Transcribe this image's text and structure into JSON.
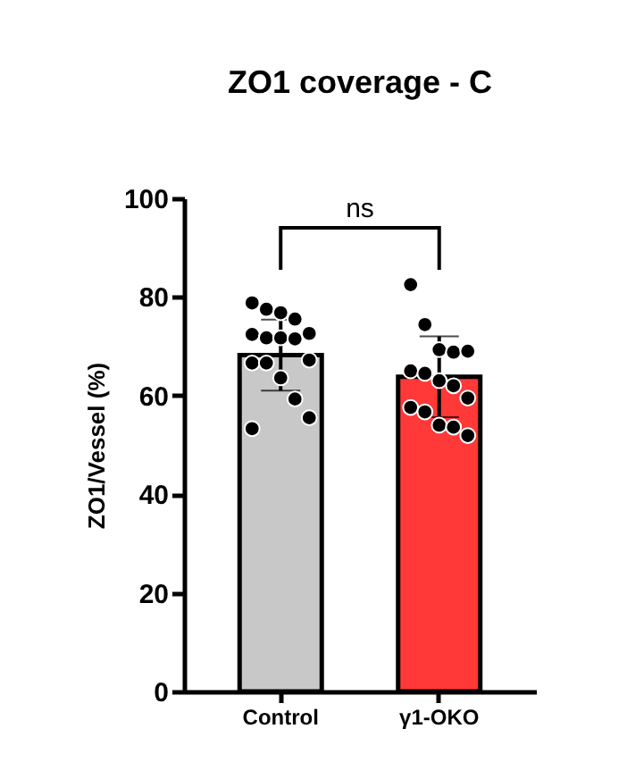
{
  "chart_data": {
    "type": "bar",
    "title": "ZO1 coverage - C",
    "ylabel": "ZO1/Vessel (%)",
    "categories": [
      "Control",
      "γ1-OKO"
    ],
    "ylim": [
      0,
      100
    ],
    "yticks": [
      0,
      20,
      40,
      60,
      80,
      100
    ],
    "grid": false,
    "legend": false,
    "annotations": [
      "ns"
    ],
    "series": [
      {
        "type": "bar",
        "colors": [
          "#c8c8c8",
          "#ff3838"
        ],
        "values": [
          68.2,
          63.8
        ],
        "errors": [
          7.2,
          8.2
        ]
      },
      {
        "type": "scatter",
        "color": "#000000",
        "x": [
          "Control",
          "Control",
          "Control",
          "Control",
          "Control",
          "Control",
          "Control",
          "Control",
          "Control",
          "Control",
          "Control",
          "Control",
          "Control",
          "Control",
          "Control",
          "Control",
          "γ1-OKO",
          "γ1-OKO",
          "γ1-OKO",
          "γ1-OKO",
          "γ1-OKO",
          "γ1-OKO",
          "γ1-OKO",
          "γ1-OKO",
          "γ1-OKO",
          "γ1-OKO",
          "γ1-OKO",
          "γ1-OKO",
          "γ1-OKO",
          "γ1-OKO",
          "γ1-OKO"
        ],
        "values": [
          78.8,
          77.5,
          76.8,
          75.5,
          72.6,
          72.4,
          71.7,
          71.7,
          71.5,
          67.2,
          66.6,
          66.6,
          63.6,
          59.3,
          55.5,
          53.3,
          82.5,
          74.4,
          69.3,
          68.8,
          69.0,
          65.0,
          64.5,
          63.0,
          62.0,
          59.5,
          57.6,
          56.7,
          54.0,
          53.6,
          51.9
        ]
      }
    ]
  }
}
